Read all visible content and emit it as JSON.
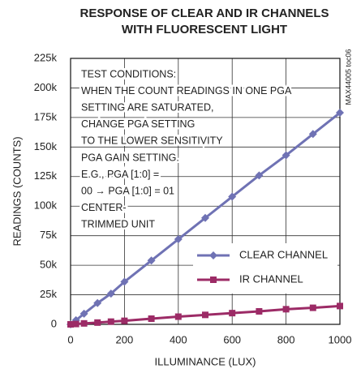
{
  "chart_data": {
    "type": "line",
    "title": [
      "RESPONSE OF CLEAR AND IR CHANNELS",
      "WITH FLUORESCENT LIGHT"
    ],
    "x_label": "ILLUMINANCE (LUX)",
    "y_label": "READINGS (COUNTS)",
    "side_note": "MAX44005 toc06",
    "annotation": [
      "TEST CONDITIONS:",
      "WHEN THE COUNT READINGS IN ONE PGA",
      "SETTING ARE SATURATED,",
      "CHANGE PGA SETTING",
      "TO THE LOWER SENSITIVITY",
      "PGA GAIN SETTING.",
      "E.G., PGA [1:0] =",
      "00 → PGA [1:0] = 01",
      "CENTER-",
      "TRIMMED UNIT"
    ],
    "x": [
      0,
      20,
      50,
      100,
      150,
      200,
      300,
      400,
      500,
      600,
      700,
      800,
      900,
      1000
    ],
    "series": [
      {
        "name": "CLEAR CHANNEL",
        "color": "#6f72b4",
        "marker": "diamond",
        "values": [
          0,
          3500,
          9000,
          18000,
          26000,
          36000,
          54000,
          72000,
          90000,
          108000,
          126000,
          143000,
          161000,
          179000
        ]
      },
      {
        "name": "IR CHANNEL",
        "color": "#9c2b66",
        "marker": "square",
        "values": [
          0,
          300,
          800,
          1500,
          2300,
          3000,
          4800,
          6500,
          8000,
          9500,
          11000,
          12800,
          14000,
          15500
        ]
      }
    ],
    "xlim": [
      0,
      1000
    ],
    "xticks": [
      0,
      200,
      400,
      600,
      800,
      1000
    ],
    "ylim": [
      0,
      225000
    ],
    "yticks": [
      0,
      {
        "value": 25000,
        "label": "25k"
      },
      {
        "value": 50000,
        "label": "50k"
      },
      {
        "value": 75000,
        "label": "75k"
      },
      {
        "value": 100000,
        "label": "100k"
      },
      {
        "value": 125000,
        "label": "125k"
      },
      {
        "value": 150000,
        "label": "150k"
      },
      {
        "value": 175000,
        "label": "175k"
      },
      {
        "value": 200000,
        "label": "200k"
      },
      {
        "value": 225000,
        "label": "225k"
      }
    ],
    "grid": true,
    "legend": "lower right"
  }
}
